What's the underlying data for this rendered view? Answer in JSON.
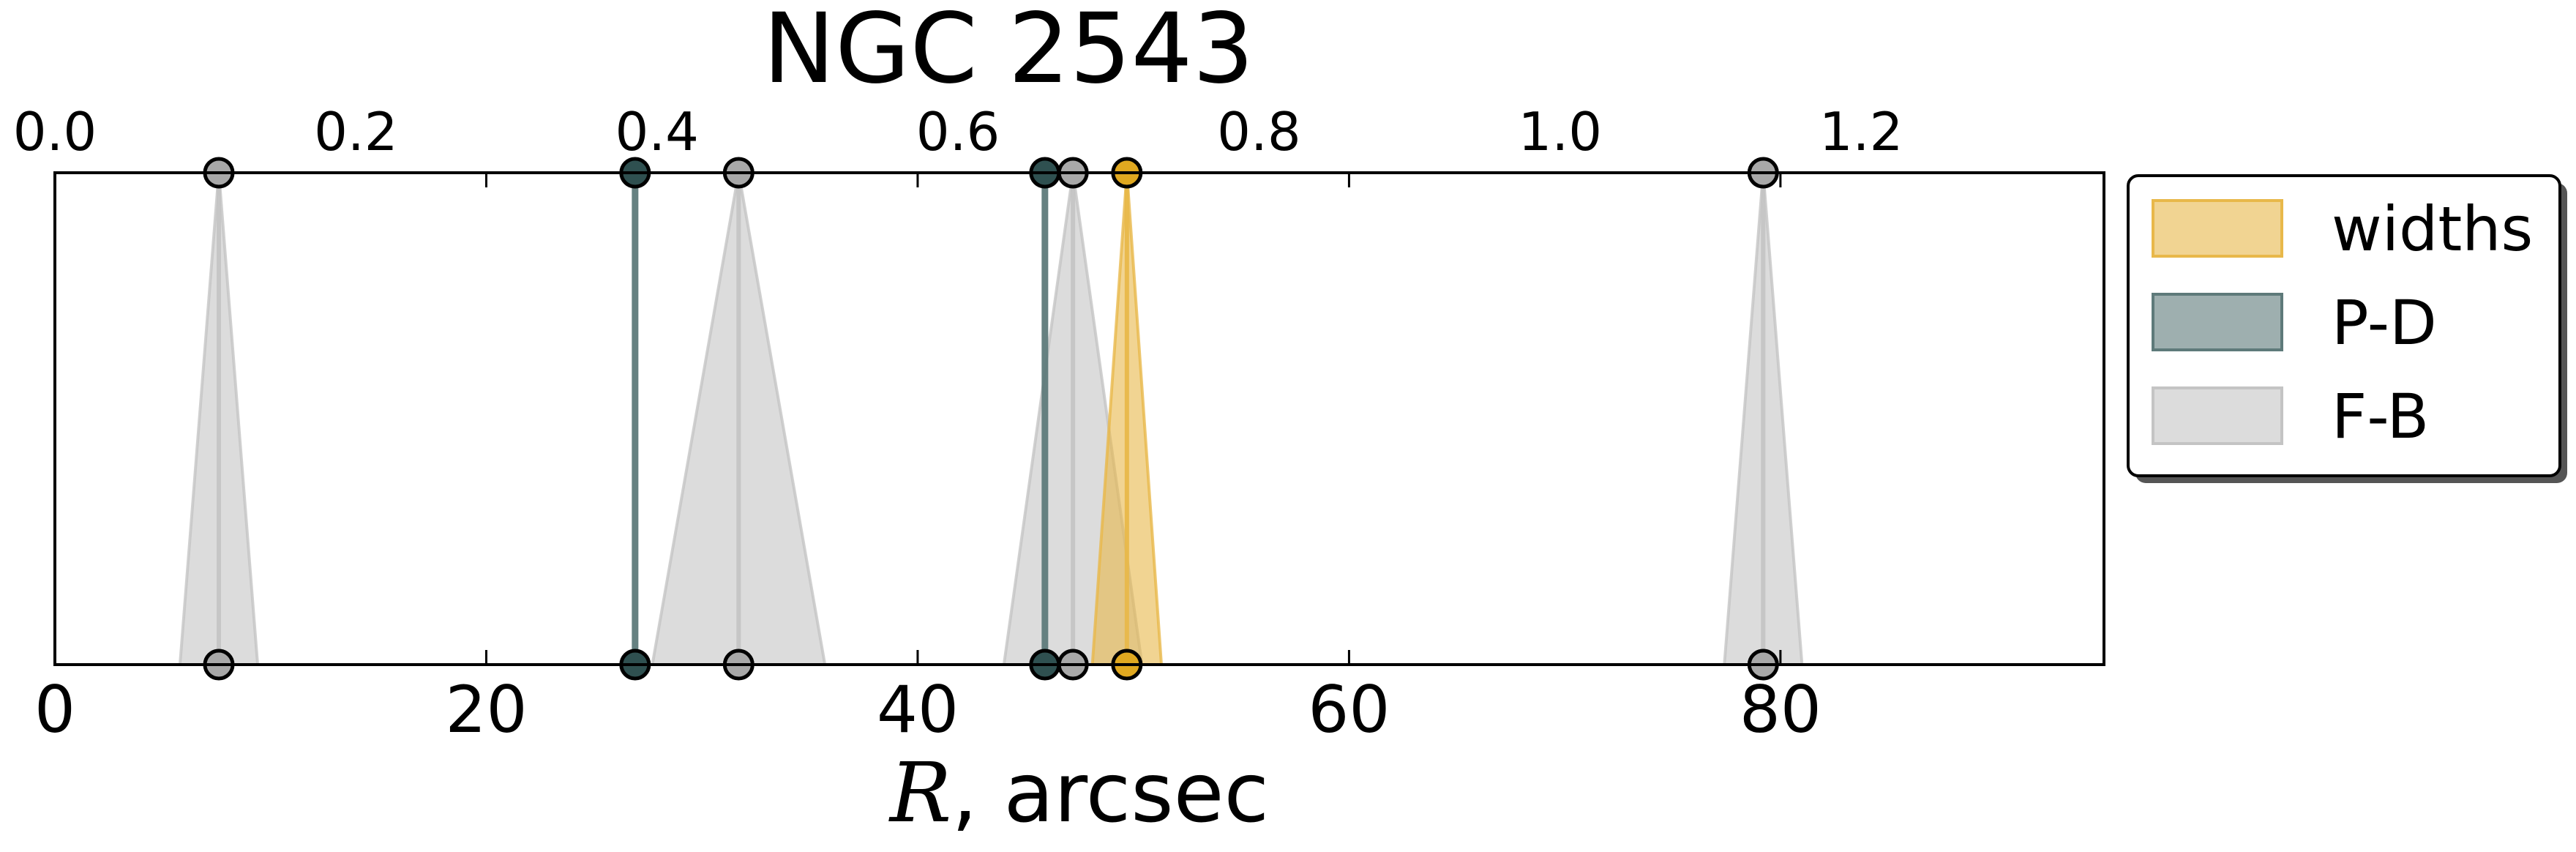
{
  "chart_data": {
    "type": "area",
    "title": "NGC 2543",
    "xlabel_var": "R",
    "xlabel_rest": ", arcsec",
    "xlim": [
      0,
      95
    ],
    "x_ticks": [
      0,
      20,
      40,
      60,
      80
    ],
    "x_tick_labels": [
      "0",
      "20",
      "40",
      "60",
      "80"
    ],
    "top_axis_scale": 0.01433,
    "top_ticks": [
      0.0,
      0.2,
      0.4,
      0.6,
      0.8,
      1.0,
      1.2
    ],
    "top_tick_labels": [
      "0.0",
      "0.2",
      "0.4",
      "0.6",
      "0.8",
      "1.0",
      "1.2"
    ],
    "grid": false,
    "legend_position": "outside-right",
    "series": [
      {
        "name": "widths",
        "color": "#E8B84A",
        "marker_color": "#E0A820",
        "markers": [
          {
            "x": 49.7,
            "half_width": 1.6
          }
        ]
      },
      {
        "name": "P-D",
        "color": "#5E7A7A",
        "marker_color": "#2F5050",
        "markers": [
          {
            "x": 26.9,
            "half_width": 0.2
          },
          {
            "x": 45.9,
            "half_width": 0.2
          }
        ]
      },
      {
        "name": "F-B",
        "color": "#C4C4C4",
        "marker_color": "#A8A8A8",
        "markers": [
          {
            "x": 7.6,
            "half_width": 1.8
          },
          {
            "x": 31.7,
            "half_width": 4.0
          },
          {
            "x": 47.2,
            "half_width": 3.2
          },
          {
            "x": 79.2,
            "half_width": 1.8
          }
        ]
      }
    ]
  }
}
